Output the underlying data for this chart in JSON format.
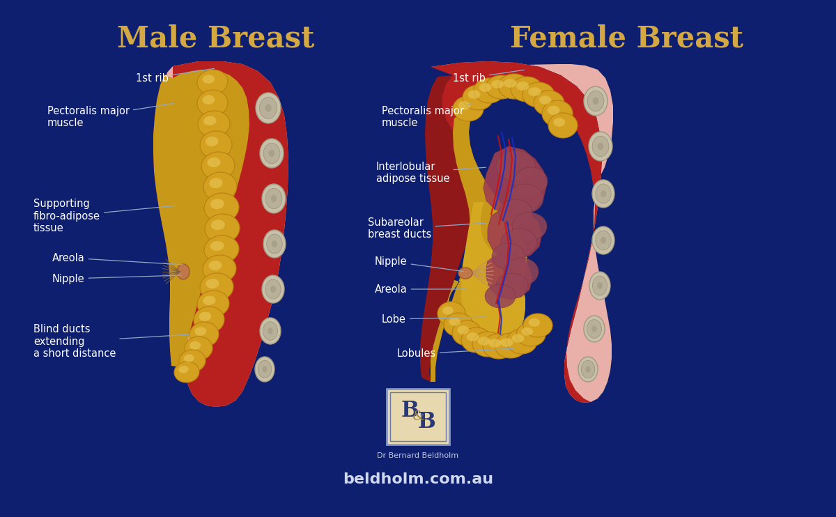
{
  "bg_color": "#0d1f6e",
  "title_male": "Male Breast",
  "title_female": "Female Breast",
  "title_color": "#d4a843",
  "title_fontsize": 30,
  "label_color": "#ffffff",
  "label_fontsize": 10.5,
  "line_color": "#a0b8d8",
  "website": "beldholm.com.au",
  "doctor": "Dr Bernard Beldholm",
  "skin_pink": "#e8b8b0",
  "skin_outer": "#d08888",
  "muscle_red": "#b02020",
  "muscle_dark": "#8b1515",
  "fat_gold": "#d4a020",
  "fat_light": "#e8c050",
  "rib_color": "#c8c0a0",
  "rib_inner": "#b0a888",
  "gland_pink": "#a05060",
  "vessel_red": "#cc1010",
  "vessel_blue": "#1030cc"
}
